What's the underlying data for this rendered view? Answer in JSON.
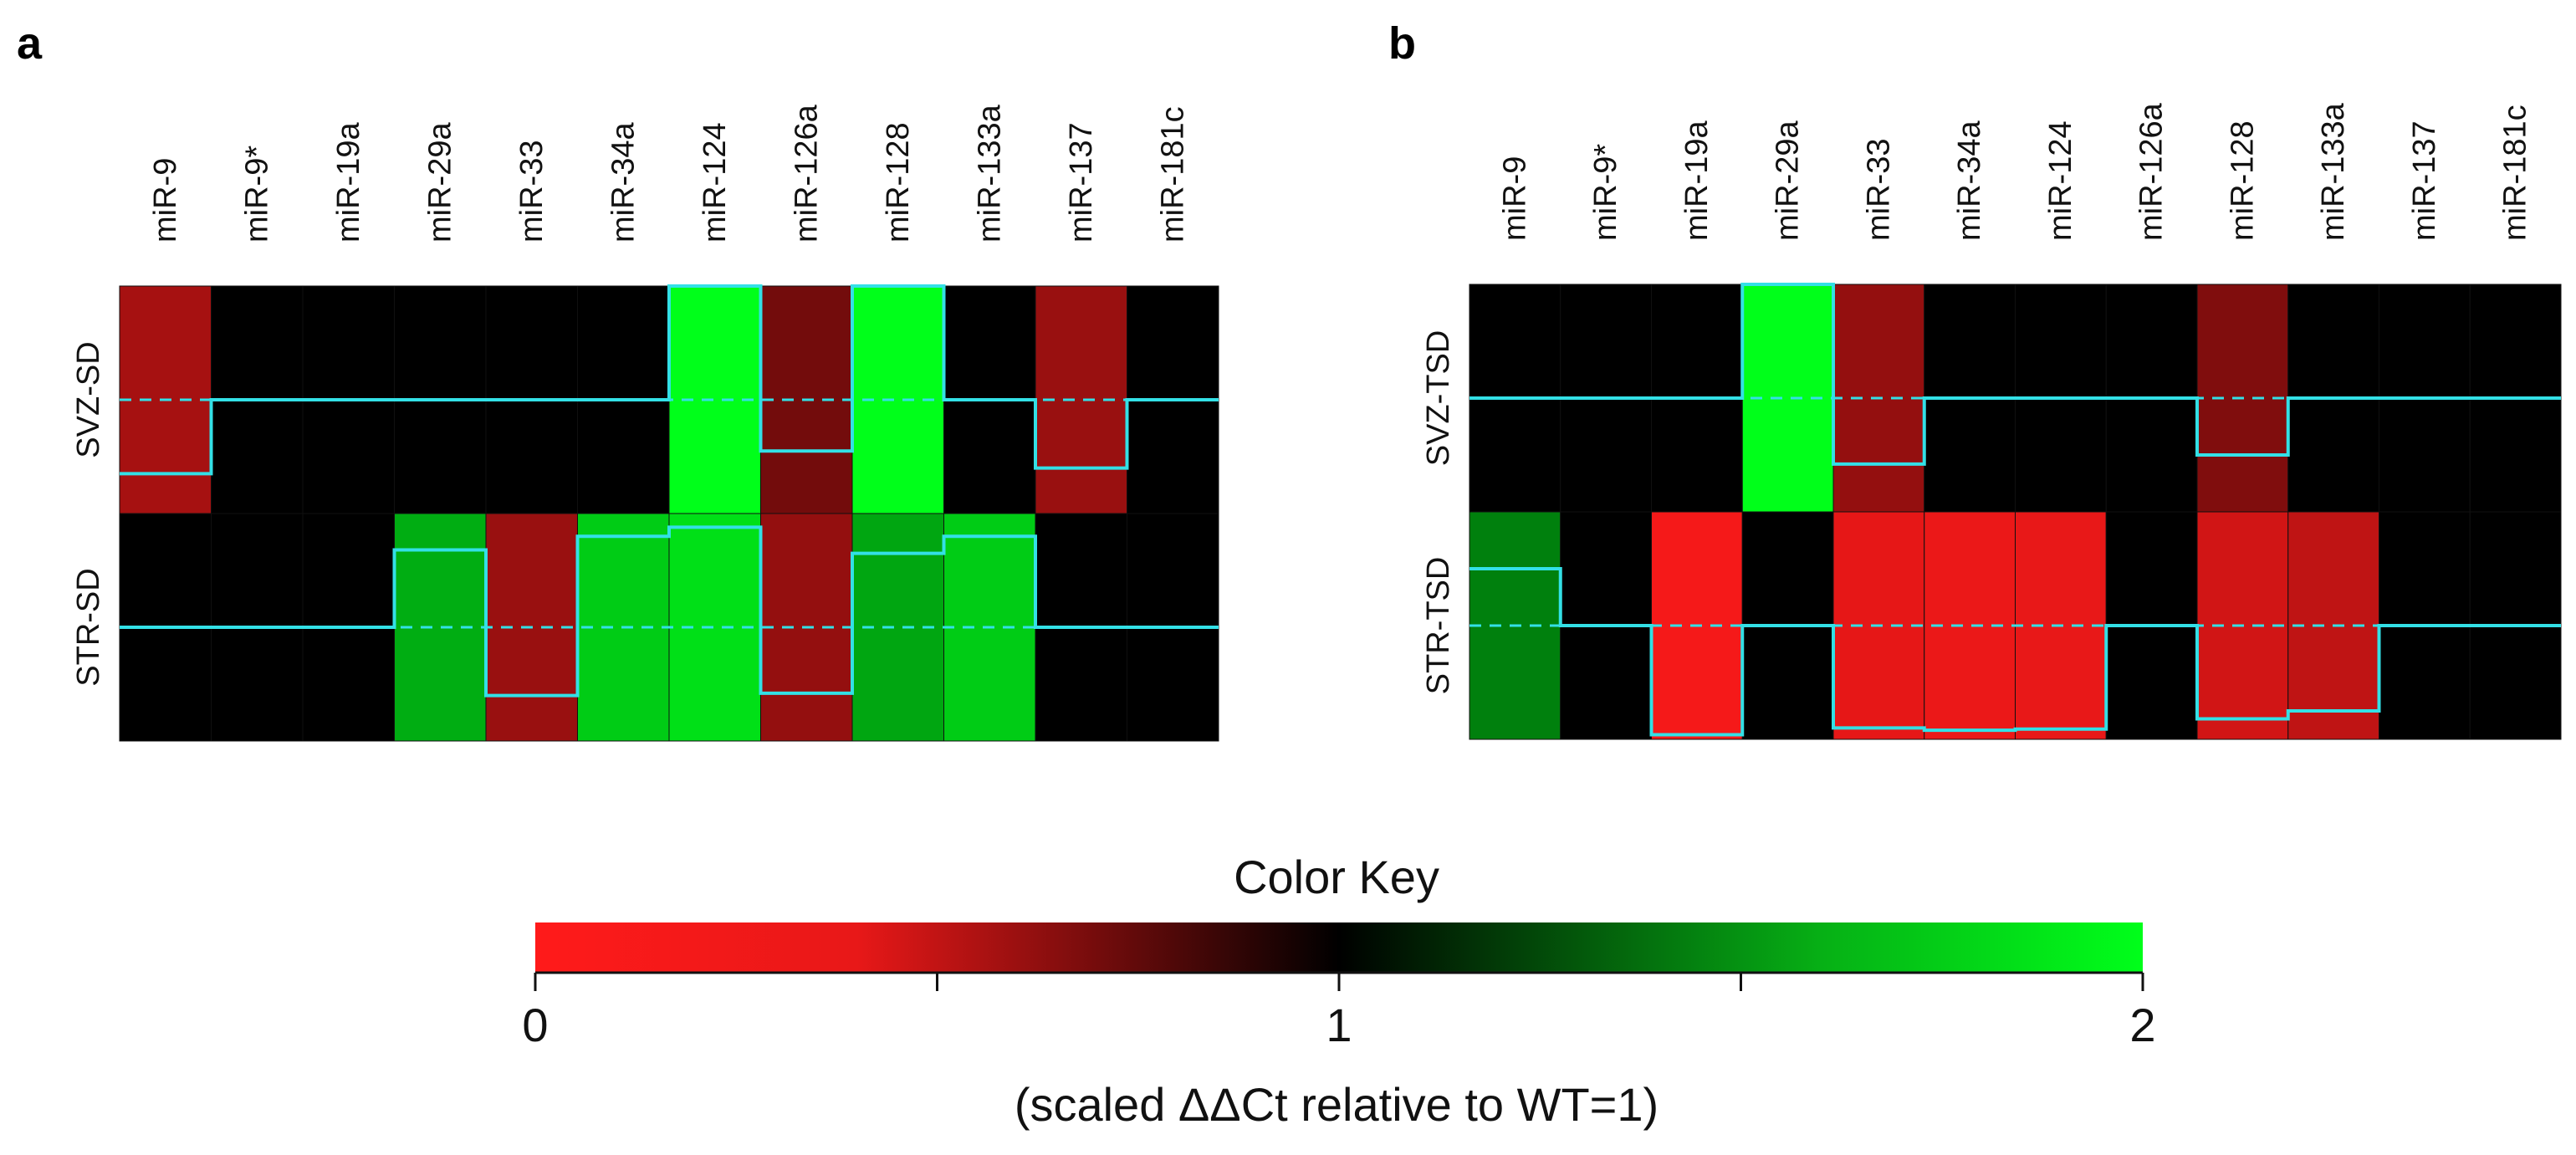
{
  "chart_data": [
    {
      "type": "heatmap",
      "panel_label": "a",
      "columns": [
        "miR-9",
        "miR-9*",
        "miR-19a",
        "miR-29a",
        "miR-33",
        "miR-34a",
        "miR-124",
        "miR-126a",
        "miR-128",
        "miR-133a",
        "miR-137",
        "miR-181c"
      ],
      "rows": [
        {
          "name": "SVZ-SD",
          "values": [
            0.35,
            1.0,
            1.0,
            1.0,
            1.0,
            1.0,
            2.0,
            0.55,
            2.0,
            1.0,
            0.4,
            1.0
          ]
        },
        {
          "name": "STR-SD",
          "values": [
            1.0,
            1.0,
            1.0,
            1.68,
            0.4,
            1.8,
            1.88,
            0.42,
            1.65,
            1.8,
            1.0,
            1.0
          ]
        }
      ],
      "value_range": [
        0,
        2
      ],
      "trace": true
    },
    {
      "type": "heatmap",
      "panel_label": "b",
      "columns": [
        "miR-9",
        "miR-9*",
        "miR-19a",
        "miR-29a",
        "miR-33",
        "miR-34a",
        "miR-124",
        "miR-126a",
        "miR-128",
        "miR-133a",
        "miR-137",
        "miR-181c"
      ],
      "rows": [
        {
          "name": "SVZ-TSD",
          "values": [
            1.0,
            1.0,
            1.0,
            2.0,
            0.42,
            1.0,
            1.0,
            1.0,
            0.5,
            1.0,
            1.0,
            1.0
          ]
        },
        {
          "name": "STR-TSD",
          "values": [
            1.5,
            1.0,
            0.04,
            1.0,
            0.1,
            0.08,
            0.09,
            1.0,
            0.18,
            0.25,
            1.0,
            1.0
          ]
        }
      ],
      "value_range": [
        0,
        2
      ],
      "trace": true
    }
  ],
  "color_key": {
    "title": "Color Key",
    "ticks": [
      "0",
      "1",
      "2"
    ],
    "caption": "(scaled ΔΔCt  relative to WT=1)",
    "low_color": "#ff1a1a",
    "mid_color": "#000000",
    "high_color": "#00ff1a"
  },
  "colors": {
    "trace": "#33e0e6",
    "cell_border": "#101010"
  }
}
